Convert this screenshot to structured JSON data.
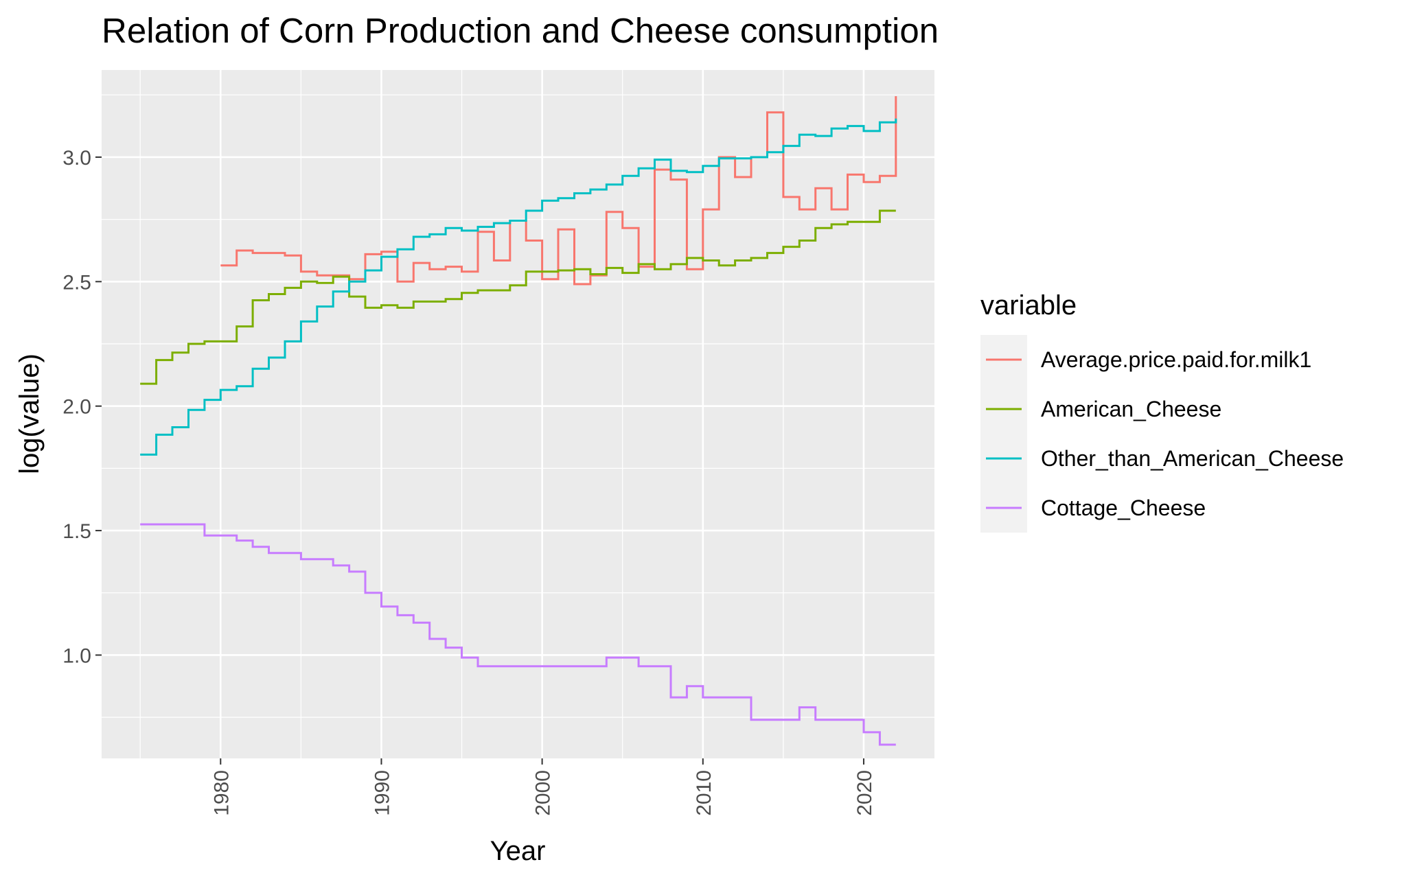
{
  "chart_data": {
    "type": "line",
    "step": "hv",
    "title": "Relation of Corn Production and Cheese consumption",
    "xlabel": "Year",
    "ylabel": "log(value)",
    "xlim": [
      1972.6,
      2024.4
    ],
    "ylim": [
      0.585,
      3.35
    ],
    "x_ticks": [
      1980,
      1990,
      2000,
      2010,
      2020
    ],
    "x_tick_labels": [
      "1980",
      "1990",
      "2000",
      "2010",
      "2020"
    ],
    "y_ticks": [
      1.0,
      1.5,
      2.0,
      2.5,
      3.0
    ],
    "y_tick_labels": [
      "1.0",
      "1.5",
      "2.0",
      "2.5",
      "3.0"
    ],
    "grid": true,
    "legend": {
      "title": "variable",
      "position": "right"
    },
    "series": [
      {
        "name": "Average.price.paid.for.milk1",
        "color": "#F8766D",
        "x": [
          1980,
          1981,
          1982,
          1983,
          1984,
          1985,
          1986,
          1987,
          1988,
          1989,
          1990,
          1991,
          1992,
          1993,
          1994,
          1995,
          1996,
          1997,
          1998,
          1999,
          2000,
          2001,
          2002,
          2003,
          2004,
          2005,
          2006,
          2007,
          2008,
          2009,
          2010,
          2011,
          2012,
          2013,
          2014,
          2015,
          2016,
          2017,
          2018,
          2019,
          2020,
          2021,
          2022
        ],
        "values": [
          2.565,
          2.625,
          2.615,
          2.615,
          2.605,
          2.54,
          2.525,
          2.525,
          2.51,
          2.61,
          2.62,
          2.5,
          2.575,
          2.55,
          2.56,
          2.54,
          2.7,
          2.585,
          2.745,
          2.665,
          2.51,
          2.71,
          2.49,
          2.525,
          2.78,
          2.715,
          2.56,
          2.95,
          2.91,
          2.55,
          2.79,
          3.0,
          2.92,
          3.0,
          3.18,
          2.84,
          2.79,
          2.875,
          2.79,
          2.93,
          2.9,
          2.925,
          3.245
        ]
      },
      {
        "name": "American_Cheese",
        "color": "#7CAE00",
        "x": [
          1975,
          1976,
          1977,
          1978,
          1979,
          1980,
          1981,
          1982,
          1983,
          1984,
          1985,
          1986,
          1987,
          1988,
          1989,
          1990,
          1991,
          1992,
          1993,
          1994,
          1995,
          1996,
          1997,
          1998,
          1999,
          2000,
          2001,
          2002,
          2003,
          2004,
          2005,
          2006,
          2007,
          2008,
          2009,
          2010,
          2011,
          2012,
          2013,
          2014,
          2015,
          2016,
          2017,
          2018,
          2019,
          2020,
          2021,
          2022
        ],
        "values": [
          2.09,
          2.185,
          2.215,
          2.25,
          2.26,
          2.26,
          2.32,
          2.425,
          2.45,
          2.475,
          2.5,
          2.495,
          2.52,
          2.44,
          2.395,
          2.405,
          2.395,
          2.42,
          2.42,
          2.43,
          2.455,
          2.465,
          2.465,
          2.485,
          2.54,
          2.54,
          2.545,
          2.55,
          2.53,
          2.555,
          2.535,
          2.57,
          2.55,
          2.57,
          2.595,
          2.585,
          2.565,
          2.585,
          2.595,
          2.615,
          2.64,
          2.665,
          2.715,
          2.73,
          2.74,
          2.74,
          2.785,
          2.785
        ]
      },
      {
        "name": "Other_than_American_Cheese",
        "color": "#00BFC4",
        "x": [
          1975,
          1976,
          1977,
          1978,
          1979,
          1980,
          1981,
          1982,
          1983,
          1984,
          1985,
          1986,
          1987,
          1988,
          1989,
          1990,
          1991,
          1992,
          1993,
          1994,
          1995,
          1996,
          1997,
          1998,
          1999,
          2000,
          2001,
          2002,
          2003,
          2004,
          2005,
          2006,
          2007,
          2008,
          2009,
          2010,
          2011,
          2012,
          2013,
          2014,
          2015,
          2016,
          2017,
          2018,
          2019,
          2020,
          2021,
          2022
        ],
        "values": [
          1.805,
          1.885,
          1.915,
          1.985,
          2.025,
          2.065,
          2.08,
          2.15,
          2.195,
          2.26,
          2.34,
          2.4,
          2.46,
          2.5,
          2.545,
          2.6,
          2.63,
          2.68,
          2.69,
          2.715,
          2.705,
          2.72,
          2.735,
          2.745,
          2.785,
          2.825,
          2.835,
          2.855,
          2.87,
          2.89,
          2.925,
          2.955,
          2.99,
          2.945,
          2.94,
          2.965,
          2.995,
          2.995,
          3.0,
          3.02,
          3.045,
          3.09,
          3.085,
          3.115,
          3.125,
          3.105,
          3.14,
          3.155
        ]
      },
      {
        "name": "Cottage_Cheese",
        "color": "#C77CFF",
        "x": [
          1975,
          1976,
          1977,
          1978,
          1979,
          1980,
          1981,
          1982,
          1983,
          1984,
          1985,
          1986,
          1987,
          1988,
          1989,
          1990,
          1991,
          1992,
          1993,
          1994,
          1995,
          1996,
          1997,
          1998,
          1999,
          2000,
          2001,
          2002,
          2003,
          2004,
          2005,
          2006,
          2007,
          2008,
          2009,
          2010,
          2011,
          2012,
          2013,
          2014,
          2015,
          2016,
          2017,
          2018,
          2019,
          2020,
          2021,
          2022
        ],
        "values": [
          1.525,
          1.525,
          1.525,
          1.525,
          1.48,
          1.48,
          1.46,
          1.435,
          1.41,
          1.41,
          1.385,
          1.385,
          1.36,
          1.335,
          1.25,
          1.195,
          1.16,
          1.13,
          1.065,
          1.03,
          0.99,
          0.955,
          0.955,
          0.955,
          0.955,
          0.955,
          0.955,
          0.955,
          0.955,
          0.99,
          0.99,
          0.955,
          0.955,
          0.83,
          0.875,
          0.83,
          0.83,
          0.83,
          0.74,
          0.74,
          0.74,
          0.79,
          0.74,
          0.74,
          0.74,
          0.69,
          0.64,
          0.64
        ]
      }
    ]
  }
}
